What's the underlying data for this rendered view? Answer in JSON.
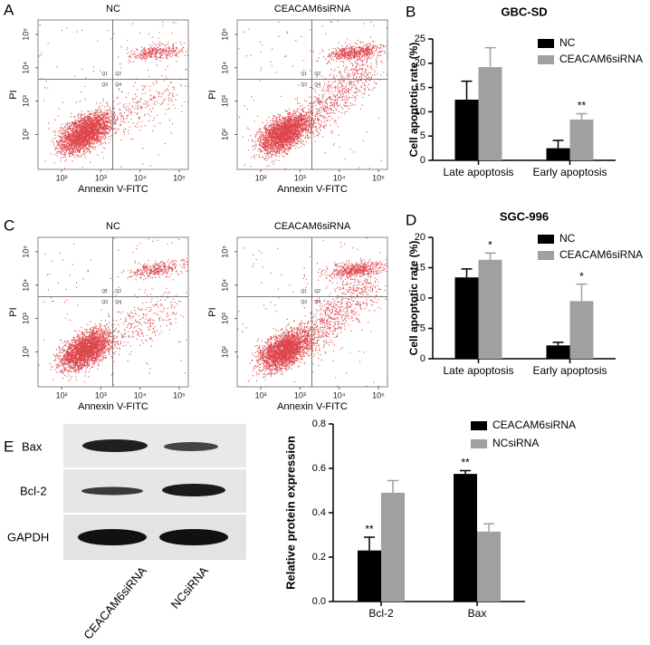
{
  "panel_labels": [
    "A",
    "B",
    "C",
    "D",
    "E"
  ],
  "chart_data": [
    {
      "type": "flow",
      "title": "NC",
      "x_label": "Annexin V-FITC",
      "y_label": "PI",
      "log_scale": true,
      "xlim": [
        25,
        170000
      ],
      "ylim": [
        9,
        270000
      ],
      "xticks": [
        {
          "value": 100,
          "label": "10²"
        },
        {
          "value": 1000,
          "label": "10³"
        },
        {
          "value": 10000,
          "label": "10⁴"
        },
        {
          "value": 100000,
          "label": "10⁵"
        }
      ],
      "yticks": [
        {
          "value": 100,
          "label": "10²"
        },
        {
          "value": 1000,
          "label": "10³"
        },
        {
          "value": 10000,
          "label": "10⁴"
        },
        {
          "value": 100000,
          "label": "10⁵"
        }
      ],
      "gates": {
        "x": 2000,
        "y": 4500
      },
      "quadrants": [
        "Q1",
        "Q2",
        "Q3",
        "Q4"
      ]
    },
    {
      "type": "flow",
      "title": "CEACAM6siRNA",
      "x_label": "Annexin V-FITC",
      "y_label": "PI",
      "log_scale": true,
      "xlim": [
        25,
        170000
      ],
      "ylim": [
        9,
        270000
      ],
      "xticks": [
        {
          "value": 100,
          "label": "10²"
        },
        {
          "value": 1000,
          "label": "10³"
        },
        {
          "value": 10000,
          "label": "10⁴"
        },
        {
          "value": 100000,
          "label": "10⁵"
        }
      ],
      "yticks": [
        {
          "value": 100,
          "label": "10²"
        },
        {
          "value": 1000,
          "label": "10³"
        },
        {
          "value": 10000,
          "label": "10⁴"
        },
        {
          "value": 100000,
          "label": "10⁵"
        }
      ],
      "gates": {
        "x": 2000,
        "y": 4500
      },
      "quadrants": [
        "Q1",
        "Q2",
        "Q3",
        "Q4"
      ]
    },
    {
      "type": "flow",
      "title": "NC",
      "x_label": "Annexin V-FITC",
      "y_label": "PI",
      "log_scale": true,
      "xlim": [
        25,
        170000
      ],
      "ylim": [
        9,
        270000
      ],
      "xticks": [
        {
          "value": 100,
          "label": "10²"
        },
        {
          "value": 1000,
          "label": "10³"
        },
        {
          "value": 10000,
          "label": "10⁴"
        },
        {
          "value": 100000,
          "label": "10⁵"
        }
      ],
      "yticks": [
        {
          "value": 100,
          "label": "10²"
        },
        {
          "value": 1000,
          "label": "10³"
        },
        {
          "value": 10000,
          "label": "10⁴"
        },
        {
          "value": 100000,
          "label": "10⁵"
        }
      ],
      "gates": {
        "x": 2000,
        "y": 4500
      },
      "quadrants": [
        "Q1",
        "Q2",
        "Q3",
        "Q4"
      ]
    },
    {
      "type": "flow",
      "title": "CEACAM6siRNA",
      "x_label": "Annexin V-FITC",
      "y_label": "PI",
      "log_scale": true,
      "xlim": [
        25,
        170000
      ],
      "ylim": [
        9,
        270000
      ],
      "xticks": [
        {
          "value": 100,
          "label": "10²"
        },
        {
          "value": 1000,
          "label": "10³"
        },
        {
          "value": 10000,
          "label": "10⁴"
        },
        {
          "value": 100000,
          "label": "10⁵"
        }
      ],
      "yticks": [
        {
          "value": 100,
          "label": "10²"
        },
        {
          "value": 1000,
          "label": "10³"
        },
        {
          "value": 10000,
          "label": "10⁴"
        },
        {
          "value": 100000,
          "label": "10⁵"
        }
      ],
      "gates": {
        "x": 2000,
        "y": 4500
      },
      "quadrants": [
        "Q1",
        "Q2",
        "Q3",
        "Q4"
      ]
    },
    {
      "type": "bar",
      "title": "GBC-SD",
      "y_label": "Cell apoptotic rate (%)",
      "categories": [
        "Late apoptosis",
        "Early apoptosis"
      ],
      "series": [
        {
          "name": "NC",
          "color": "#000000",
          "values": [
            12.5,
            2.5
          ],
          "errors": [
            3.8,
            1.6
          ]
        },
        {
          "name": "CEACAM6siRNA",
          "color": "#a0a0a0",
          "values": [
            19.2,
            8.4
          ],
          "errors": [
            4.0,
            1.2
          ],
          "significance": [
            null,
            "**"
          ]
        }
      ],
      "ylim": [
        0,
        25
      ],
      "yticks": [
        0,
        5,
        10,
        15,
        20,
        25
      ],
      "legend": "upper right"
    },
    {
      "type": "bar",
      "title": "SGC-996",
      "y_label": "Cell apoptotic rate (%)",
      "categories": [
        "Late apoptosis",
        "Early apoptosis"
      ],
      "series": [
        {
          "name": "NC",
          "color": "#000000",
          "values": [
            13.4,
            2.2
          ],
          "errors": [
            1.4,
            0.5
          ]
        },
        {
          "name": "CEACAM6siRNA",
          "color": "#a0a0a0",
          "values": [
            16.3,
            9.5
          ],
          "errors": [
            1.1,
            2.8
          ],
          "significance": [
            "*",
            "*"
          ]
        }
      ],
      "ylim": [
        0,
        20
      ],
      "yticks": [
        0,
        5,
        10,
        15,
        20
      ],
      "legend": "upper right"
    },
    {
      "type": "bar",
      "y_label": "Relative protein expression",
      "categories": [
        "Bcl-2",
        "Bax"
      ],
      "series": [
        {
          "name": "CEACAM6siRNA",
          "color": "#000000",
          "values": [
            0.23,
            0.575
          ],
          "errors": [
            0.06,
            0.015
          ],
          "significance": [
            "**",
            "**"
          ]
        },
        {
          "name": "NCsiRNA",
          "color": "#a0a0a0",
          "values": [
            0.49,
            0.315
          ],
          "errors": [
            0.055,
            0.035
          ]
        }
      ],
      "ylim": [
        0,
        0.8
      ],
      "yticks": [
        {
          "value": 0,
          "label": "0.0"
        },
        0.2,
        0.4,
        0.6,
        0.8
      ],
      "legend": "upper right"
    }
  ],
  "blot": {
    "rows": [
      "Bax",
      "Bcl-2",
      "GAPDH"
    ],
    "lanes": [
      "CEACAM6siRNA",
      "NCsiRNA"
    ]
  }
}
